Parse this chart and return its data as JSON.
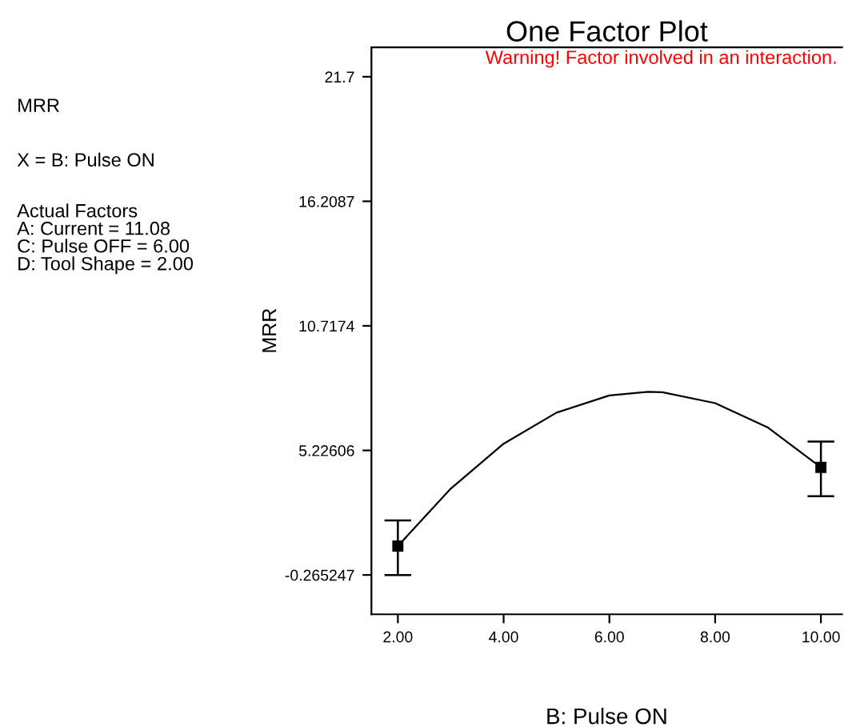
{
  "chart_data": {
    "type": "line",
    "title": "One Factor Plot",
    "xlabel": "B: Pulse ON",
    "ylabel": "MRR",
    "annotations": [
      "MRR",
      "X = B: Pulse ON",
      "Actual Factors\nA: Current = 11.08\nC: Pulse OFF = 6.00\nD: Tool Shape = 2.00",
      "Warning! Factor involved in an interaction."
    ],
    "xlim": [
      1.5,
      10.4
    ],
    "ylim": [
      -2,
      23
    ],
    "xticks": [
      {
        "value": 2,
        "label": "2.00"
      },
      {
        "value": 4,
        "label": "4.00"
      },
      {
        "value": 6,
        "label": "6.00"
      },
      {
        "value": 8,
        "label": "8.00"
      },
      {
        "value": 10,
        "label": "10.00"
      }
    ],
    "yticks": [
      -0.265247,
      5.22606,
      10.7174,
      16.2087,
      21.7
    ],
    "grid": false,
    "legend": false,
    "series": [
      {
        "color": "#000000",
        "marker": "none",
        "line_style": "solid",
        "x": [
          2,
          3,
          4,
          5,
          6,
          6.73,
          7,
          8,
          9,
          10
        ],
        "values": [
          1.01,
          3.54,
          5.52,
          6.89,
          7.65,
          7.81,
          7.79,
          7.31,
          6.23,
          4.48
        ]
      },
      {
        "type": "scatter",
        "color": "#000000",
        "marker": "square",
        "x": [
          2,
          10
        ],
        "values": [
          1.01,
          4.48
        ],
        "errors": [
          [
            -0.27,
            2.14
          ],
          [
            3.21,
            5.62
          ]
        ]
      }
    ]
  }
}
